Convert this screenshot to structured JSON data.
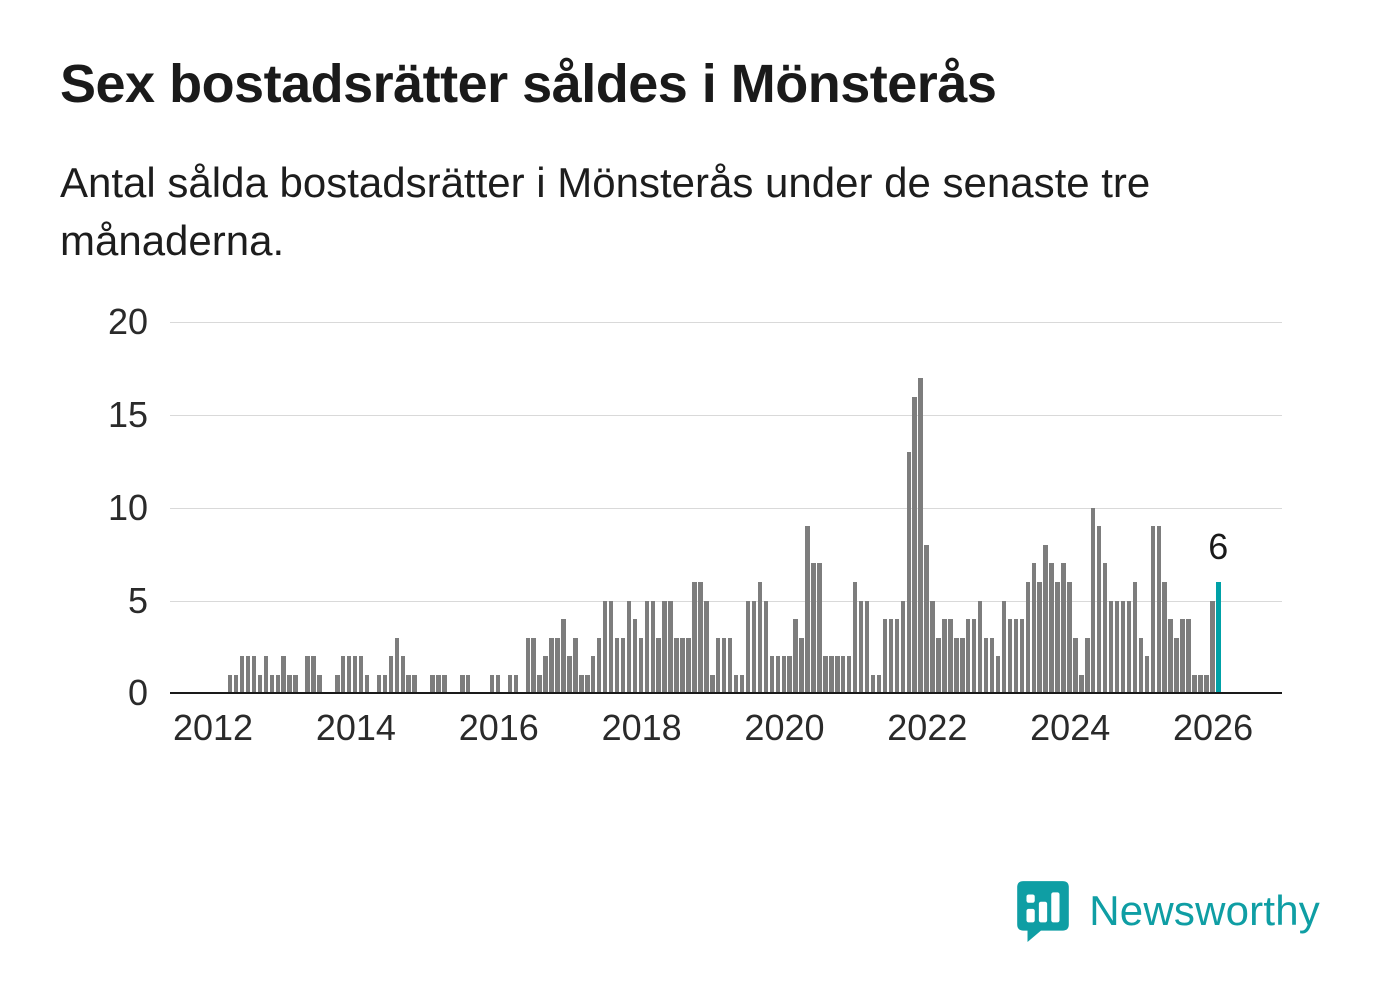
{
  "chart_data": {
    "type": "bar",
    "title": "Sex bostadsrätter såldes i Mönsterås",
    "subtitle": "Antal sålda bostadsrätter i Mönsterås under de senaste tre månaderna.",
    "frequency": "monthly",
    "start": "2012-02",
    "values": [
      0,
      0,
      1,
      1,
      2,
      2,
      2,
      1,
      2,
      1,
      1,
      2,
      1,
      1,
      0,
      2,
      2,
      1,
      0,
      0,
      1,
      2,
      2,
      2,
      2,
      1,
      0,
      1,
      1,
      2,
      3,
      2,
      1,
      1,
      0,
      0,
      1,
      1,
      1,
      0,
      0,
      1,
      1,
      0,
      0,
      0,
      1,
      1,
      0,
      1,
      1,
      0,
      3,
      3,
      1,
      2,
      3,
      3,
      4,
      2,
      3,
      1,
      1,
      2,
      3,
      5,
      5,
      3,
      3,
      5,
      4,
      3,
      5,
      5,
      3,
      5,
      5,
      3,
      3,
      3,
      6,
      6,
      5,
      1,
      3,
      3,
      3,
      1,
      1,
      5,
      5,
      6,
      5,
      2,
      2,
      2,
      2,
      4,
      3,
      9,
      7,
      7,
      2,
      2,
      2,
      2,
      2,
      6,
      5,
      5,
      1,
      1,
      4,
      4,
      4,
      5,
      13,
      16,
      17,
      8,
      5,
      3,
      4,
      4,
      3,
      3,
      4,
      4,
      5,
      3,
      3,
      2,
      5,
      4,
      4,
      4,
      6,
      7,
      6,
      8,
      7,
      6,
      7,
      6,
      3,
      1,
      3,
      10,
      9,
      7,
      5,
      5,
      5,
      5,
      6,
      3,
      2,
      9,
      9,
      6,
      4,
      3,
      4,
      4,
      1,
      1,
      1,
      5,
      6
    ],
    "ylim": [
      0,
      20
    ],
    "yticks": [
      0,
      5,
      10,
      15,
      20
    ],
    "xticks": [
      2012,
      2014,
      2016,
      2018,
      2020,
      2022,
      2024,
      2026
    ],
    "grid": true,
    "legend": false,
    "highlight_last": true,
    "last_value_label": "6",
    "bar_color": "#7d7d7d",
    "highlight_color": "#00a1a7",
    "grid_color": "#d9d9d9",
    "axis_color": "#1a1a1a",
    "text_color": "#2a2a2a"
  },
  "footer": {
    "brand": "Newsworthy",
    "brand_color": "#0f9ea4",
    "logo_icon": "bar-chart-speech-bubble-icon"
  }
}
